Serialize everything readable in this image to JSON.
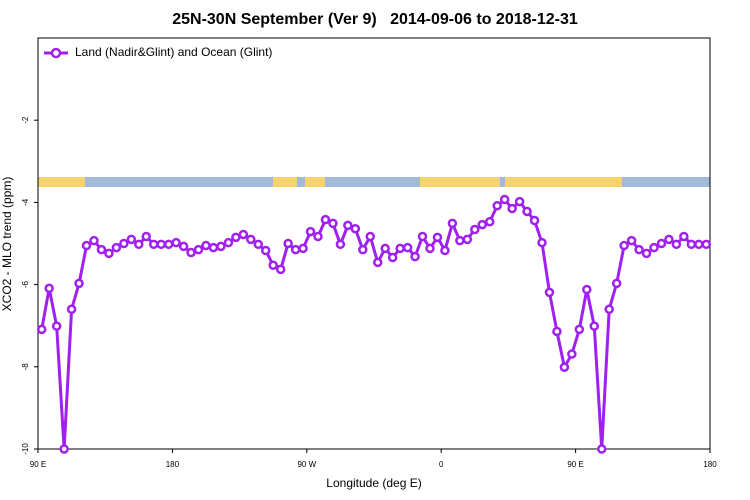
{
  "chart_data": {
    "type": "line",
    "title": "25N-30N September (Ver 9)   2014-09-06 to 2018-12-31",
    "xlabel": "Longitude (deg E)",
    "ylabel": "XCO2 - MLO trend (ppm)",
    "x": [
      92.5,
      97.5,
      102.5,
      107.5,
      112.5,
      117.5,
      122.5,
      127.5,
      132.5,
      137.5,
      142.5,
      147.5,
      152.5,
      157.5,
      162.5,
      167.5,
      172.5,
      177.5,
      182.5,
      187.5,
      192.5,
      197.5,
      202.5,
      207.5,
      212.5,
      217.5,
      222.5,
      227.5,
      232.5,
      237.5,
      242.5,
      247.5,
      252.5,
      257.5,
      262.5,
      267.5,
      272.5,
      277.5,
      282.5,
      287.5,
      292.5,
      297.5,
      302.5,
      307.5,
      312.5,
      317.5,
      322.5,
      327.5,
      332.5,
      337.5,
      342.5,
      347.5,
      352.5,
      357.5,
      362.5,
      367.5,
      372.5,
      377.5,
      382.5,
      387.5,
      392.5,
      397.5,
      402.5,
      407.5,
      412.5,
      417.5,
      422.5,
      427.5,
      432.5,
      437.5,
      442.5,
      447.5,
      452.5,
      457.5,
      462.5,
      467.5,
      472.5,
      477.5,
      482.5,
      487.5,
      492.5,
      497.5,
      502.5,
      507.5,
      512.5,
      517.5,
      522.5,
      527.5,
      532.5,
      537.5
    ],
    "series": [
      {
        "name": "Land (Nadir&Glint) and Ocean (Glint)",
        "color": "#a020f0",
        "values": [
          -7.09,
          -6.09,
          -7.01,
          -10,
          -6.6,
          -5.97,
          -5.05,
          -4.93,
          -5.15,
          -5.24,
          -5.1,
          -5.0,
          -4.9,
          -5.02,
          -4.83,
          -5.02,
          -5.02,
          -5.02,
          -4.98,
          -5.07,
          -5.22,
          -5.15,
          -5.05,
          -5.1,
          -5.07,
          -4.98,
          -4.85,
          -4.78,
          -4.9,
          -5.02,
          -5.17,
          -5.53,
          -5.63,
          -5.0,
          -5.15,
          -5.12,
          -4.71,
          -4.83,
          -4.42,
          -4.51,
          -5.02,
          -4.56,
          -4.64,
          -5.15,
          -4.83,
          -5.46,
          -5.12,
          -5.34,
          -5.12,
          -5.1,
          -5.32,
          -4.83,
          -5.12,
          -4.85,
          -5.17,
          -4.51,
          -4.93,
          -4.9,
          -4.66,
          -4.54,
          -4.47,
          -4.08,
          -3.93,
          -4.15,
          -3.98,
          -4.22,
          -4.44,
          -4.98,
          -6.19,
          -7.14,
          -8.01,
          -7.69,
          -7.09,
          -6.12,
          -7.01,
          -10,
          -6.6,
          -5.97,
          -5.05,
          -4.93,
          -5.15,
          -5.24,
          -5.1,
          -5.0,
          -4.9,
          -5.02,
          -4.83,
          -5.02,
          -5.02,
          -5.02
        ]
      }
    ],
    "xlim": [
      90,
      540
    ],
    "xticks": [
      {
        "value": 90,
        "label": "90 E"
      },
      180,
      {
        "value": 270,
        "label": "90 W"
      },
      {
        "value": 360,
        "label": "0"
      },
      {
        "value": 450,
        "label": "90 E"
      },
      {
        "value": 540,
        "label": "180"
      }
    ],
    "ylim": [
      -10,
      0
    ],
    "yticks": [
      -10,
      -8,
      -6,
      -4,
      -2
    ],
    "legend": "upper left"
  }
}
